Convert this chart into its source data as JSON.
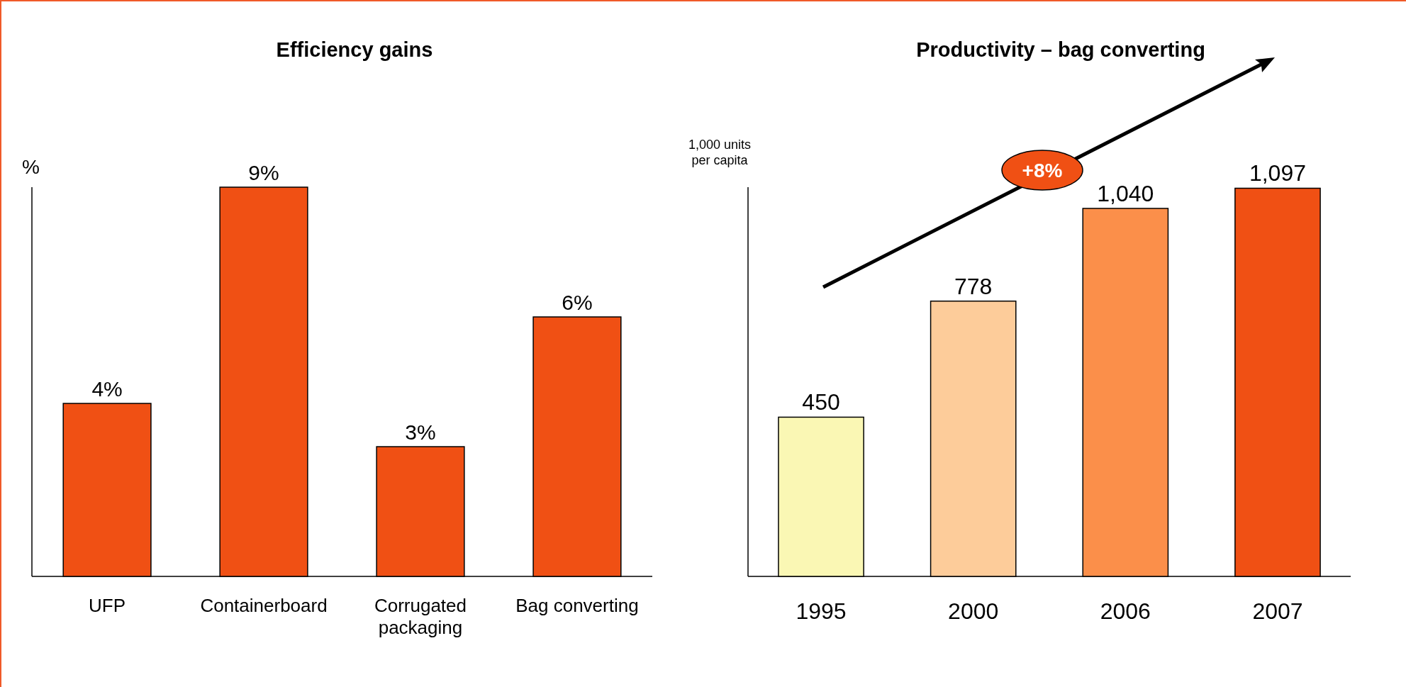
{
  "chart_data": [
    {
      "type": "bar",
      "title": "Efficiency gains",
      "ylabel": "%",
      "categories": [
        "UFP",
        "Containerboard",
        "Corrugated packaging",
        "Bag converting"
      ],
      "values": [
        4,
        9,
        3,
        6
      ],
      "value_labels": [
        "4%",
        "9%",
        "3%",
        "6%"
      ],
      "color": "#f05014",
      "ylim": [
        0,
        9
      ],
      "tick_labels": "x"
    },
    {
      "type": "bar",
      "title": "Productivity – bag converting",
      "ylabel": "1,000 units per capita",
      "categories": [
        "1995",
        "2000",
        "2006",
        "2007"
      ],
      "values": [
        450,
        778,
        1040,
        1097
      ],
      "value_labels": [
        "450",
        "778",
        "1,040",
        "1,097"
      ],
      "colors": [
        "#faf7b4",
        "#fdcc9a",
        "#fb8f4a",
        "#f05014"
      ],
      "ylim": [
        0,
        1100
      ],
      "tick_labels": "x",
      "annotations": [
        "+8%"
      ]
    }
  ]
}
